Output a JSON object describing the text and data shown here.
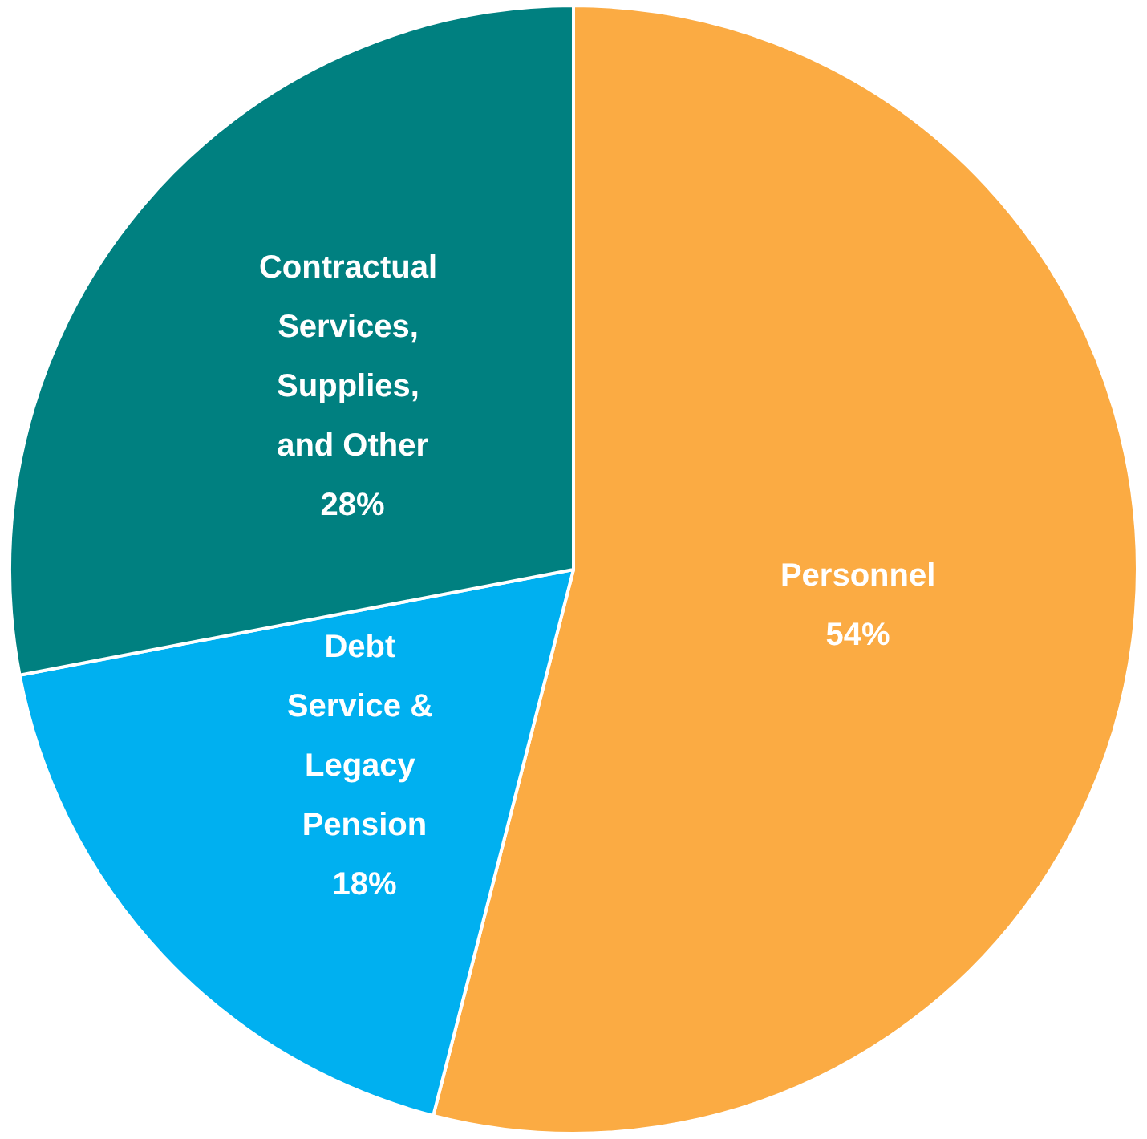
{
  "chart_data": {
    "type": "pie",
    "categories": [
      "Personnel",
      "Debt Service & Legacy Pension",
      "Contractual Services, Supplies, and Other"
    ],
    "values": [
      54,
      18,
      28
    ],
    "colors": [
      "#fbab43",
      "#00b0f0",
      "#008080"
    ],
    "value_labels": [
      "54%",
      "18%",
      "28%"
    ],
    "legend": false
  }
}
